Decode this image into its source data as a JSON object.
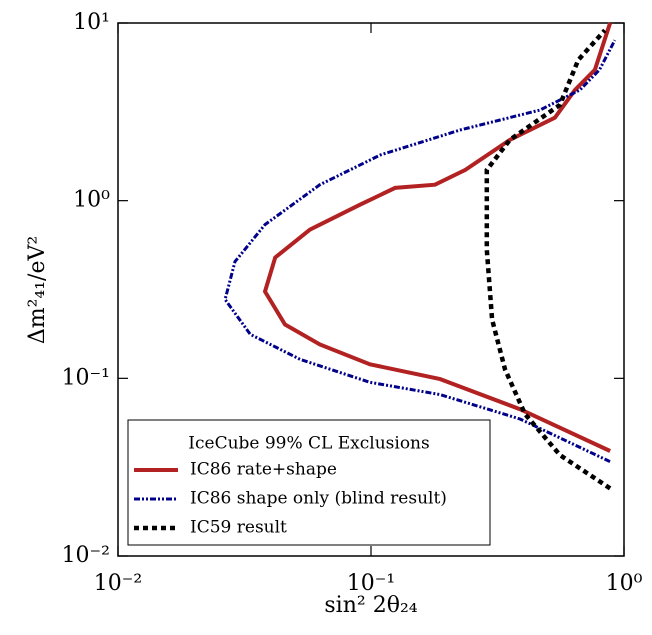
{
  "chart_data": {
    "type": "line",
    "xlabel": "sin² 2θ₂₄",
    "ylabel": "Δm²₄₁/eV²",
    "xscale": "log",
    "yscale": "log",
    "xlim": [
      0.01,
      1
    ],
    "ylim": [
      0.01,
      10
    ],
    "xticks": [
      {
        "value": 0.01,
        "label": "10⁻²"
      },
      {
        "value": 0.1,
        "label": "10⁻¹"
      },
      {
        "value": 1,
        "label": "10⁰"
      }
    ],
    "yticks": [
      {
        "value": 0.01,
        "label": "10⁻²"
      },
      {
        "value": 0.1,
        "label": "10⁻¹"
      },
      {
        "value": 1,
        "label": "10⁰"
      },
      {
        "value": 10,
        "label": "10¹"
      }
    ],
    "legend_title": "IceCube 99% CL Exclusions",
    "legend_loc": "lower left",
    "series": [
      {
        "name": "IC86 rate+shape",
        "color": "#b22222",
        "linestyle": "solid",
        "x": [
          0.881,
          0.388,
          0.1875,
          0.0991,
          0.0628,
          0.0457,
          0.0381,
          0.0418,
          0.0574,
          0.0905,
          0.1245,
          0.179,
          0.236,
          0.354,
          0.533,
          0.64,
          0.767,
          0.881
        ],
        "y": [
          0.039,
          0.067,
          0.099,
          0.12,
          0.155,
          0.201,
          0.308,
          0.479,
          0.687,
          0.949,
          1.18,
          1.23,
          1.49,
          2.2,
          2.93,
          4.2,
          5.45,
          10
        ]
      },
      {
        "name": "IC86 shape only (blind result)",
        "color": "#00008b",
        "linestyle": "dashdot",
        "x": [
          0.88,
          0.388,
          0.1875,
          0.099,
          0.0524,
          0.0333,
          0.0265,
          0.029,
          0.0381,
          0.0628,
          0.109,
          0.225,
          0.466,
          0.67,
          0.8,
          0.92
        ],
        "y": [
          0.034,
          0.059,
          0.081,
          0.095,
          0.128,
          0.177,
          0.278,
          0.454,
          0.733,
          1.23,
          1.81,
          2.5,
          3.24,
          4.2,
          5.45,
          8.0
        ]
      },
      {
        "name": "IC59 result",
        "color": "#000000",
        "linestyle": "dashed",
        "x": [
          0.881,
          0.558,
          0.406,
          0.339,
          0.301,
          0.287,
          0.287,
          0.354,
          0.558,
          0.66,
          0.84
        ],
        "y": [
          0.024,
          0.037,
          0.063,
          0.112,
          0.214,
          0.53,
          1.49,
          2.2,
          3.46,
          6.2,
          9.1
        ]
      }
    ]
  }
}
